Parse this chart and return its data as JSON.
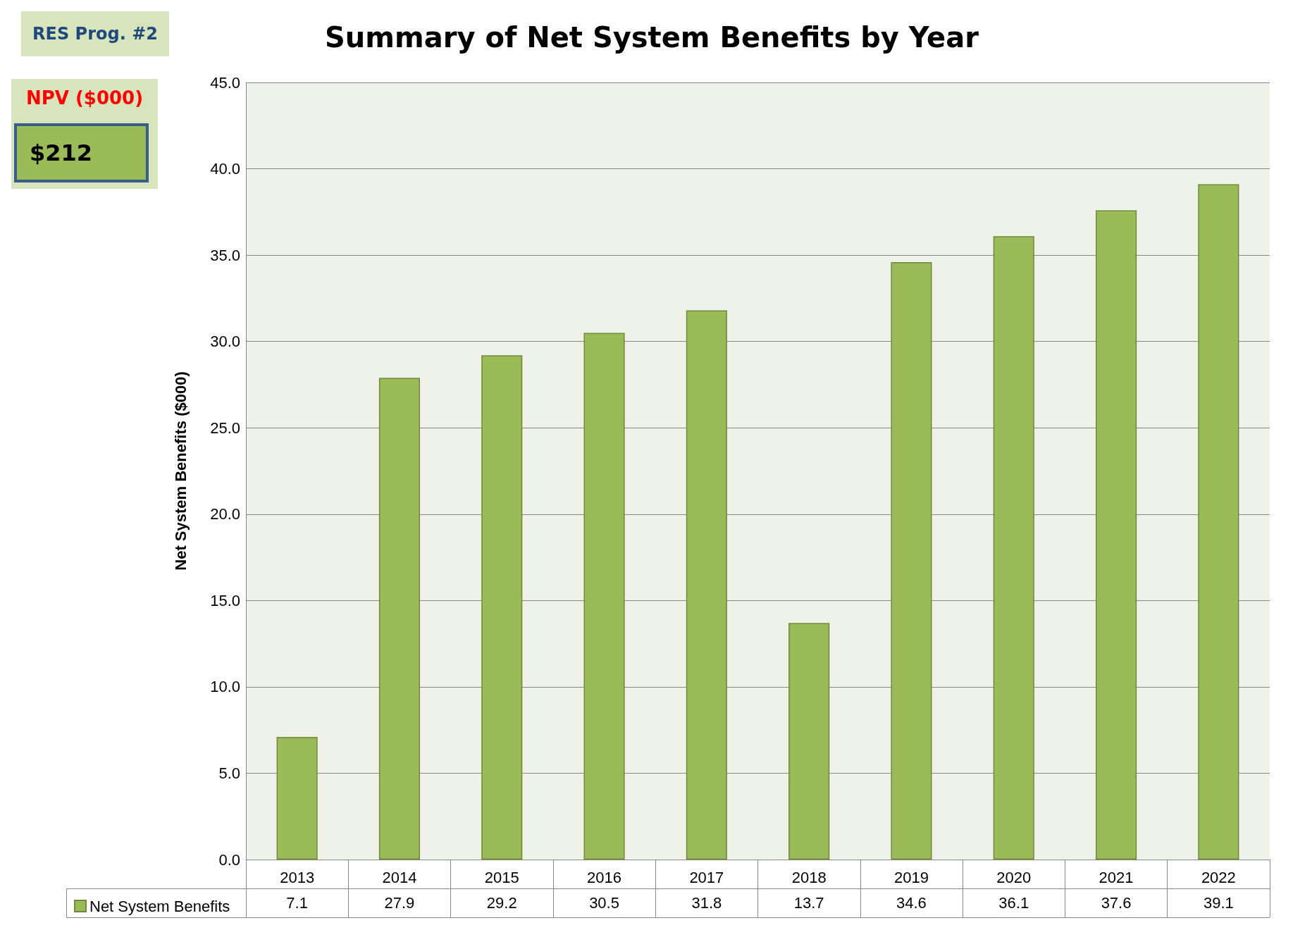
{
  "chart_data": {
    "type": "bar",
    "title": "Summary of Net System Benefits by Year",
    "ylabel": "Net System Benefits ($000)",
    "categories": [
      "2013",
      "2014",
      "2015",
      "2016",
      "2017",
      "2018",
      "2019",
      "2020",
      "2021",
      "2022"
    ],
    "series": [
      {
        "name": "Net System Benefits",
        "color": "#9bbb59",
        "values": [
          7.1,
          27.9,
          29.2,
          30.5,
          31.8,
          13.7,
          34.6,
          36.1,
          37.6,
          39.1
        ]
      }
    ],
    "ylim": [
      0,
      45
    ],
    "yticks": [
      {
        "value": 0,
        "label": "0.0"
      },
      {
        "value": 5,
        "label": "5.0"
      },
      {
        "value": 10,
        "label": "10.0"
      },
      {
        "value": 15,
        "label": "15.0"
      },
      {
        "value": 20,
        "label": "20.0"
      },
      {
        "value": 25,
        "label": "25.0"
      },
      {
        "value": 30,
        "label": "30.0"
      },
      {
        "value": 35,
        "label": "35.0"
      },
      {
        "value": 40,
        "label": "40.0"
      },
      {
        "value": 45,
        "label": "45.0"
      }
    ],
    "grid": "y",
    "legend": "bottom left",
    "data_labels": true,
    "annotations": [
      "RES Prog. #2",
      "NPV ($000)",
      "$212"
    ]
  }
}
